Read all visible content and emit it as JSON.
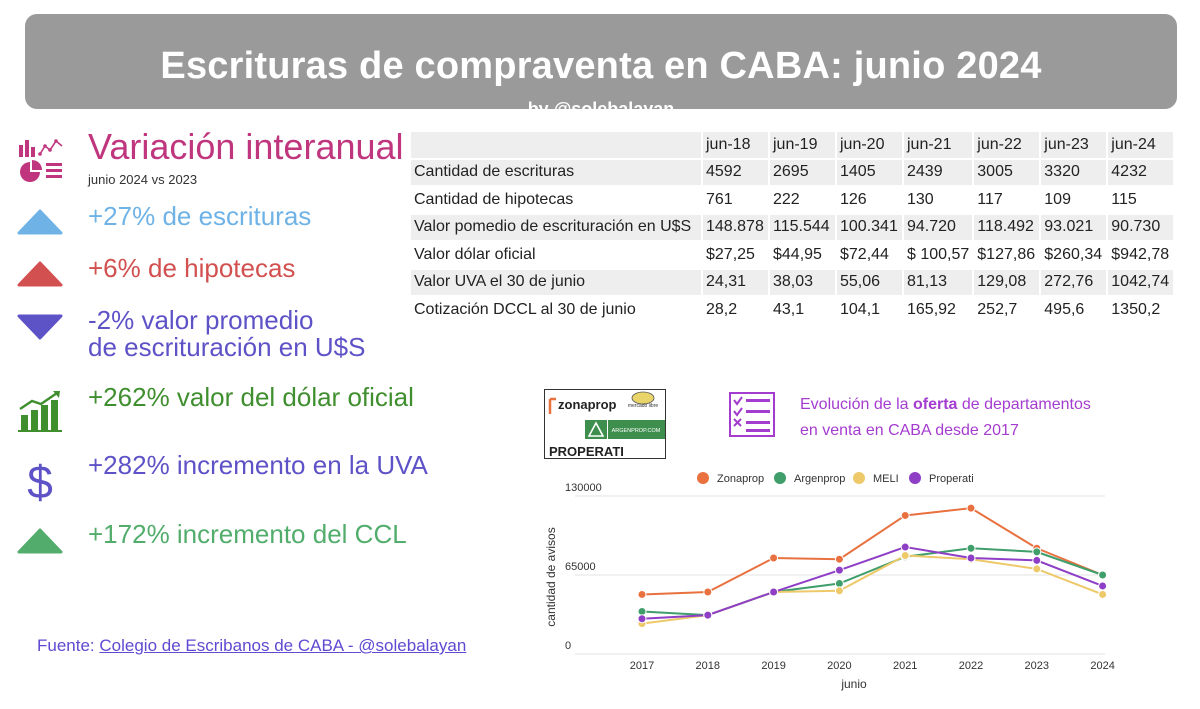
{
  "header": {
    "title": "Escrituras de compraventa en CABA:  junio 2024",
    "byline": "by @solebalayan"
  },
  "variation": {
    "title": "Variación  interanual",
    "subtitle": "junio 2024 vs 2023",
    "stats": [
      {
        "text": "+27% de escrituras",
        "color": "#6fb3e6",
        "icon": "triangle-up-icon"
      },
      {
        "text": "+6% de hipotecas",
        "color": "#d2504f",
        "icon": "triangle-up-icon"
      },
      {
        "text": "-2% valor promedio",
        "text2": "de escrituración en U$S",
        "color": "#5e52c7",
        "icon": "triangle-down-icon"
      },
      {
        "text": "+262% valor del dólar oficial",
        "color": "#3f8f2f",
        "icon": "growth-chart-icon"
      },
      {
        "text": "+282% incremento en la UVA",
        "color": "#5e52c7",
        "icon": "dollar-icon"
      },
      {
        "text": "+172% incremento del CCL",
        "color": "#52ad6c",
        "icon": "triangle-up-icon"
      }
    ]
  },
  "table": {
    "columns": [
      "jun-18",
      "jun-19",
      "jun-20",
      "jun-21",
      "jun-22",
      "jun-23",
      "jun-24"
    ],
    "rows": [
      {
        "label": "Cantidad de escrituras",
        "values": [
          "4592",
          "2695",
          "1405",
          "2439",
          "3005",
          "3320",
          "4232"
        ]
      },
      {
        "label": "Cantidad de hipotecas",
        "values": [
          "761",
          "222",
          "126",
          "130",
          "117",
          "109",
          "115"
        ]
      },
      {
        "label": "Valor pomedio de escrituración en U$S",
        "values": [
          "148.878",
          "115.544",
          "100.341",
          "94.720",
          "118.492",
          "93.021",
          "90.730"
        ]
      },
      {
        "label": "Valor dólar oficial",
        "values": [
          "$27,25",
          "$44,95",
          "$72,44",
          "$ 100,57",
          "$127,86",
          "$260,34",
          "$942,78"
        ]
      },
      {
        "label": "Valor UVA el 30 de junio",
        "values": [
          "24,31",
          "38,03",
          "55,06",
          "81,13",
          "129,08",
          "272,76",
          "1042,74"
        ]
      },
      {
        "label": "Cotización DCCL al 30 de junio",
        "values": [
          "28,2",
          "43,1",
          "104,1",
          "165,92",
          "252,7",
          "495,6",
          "1350,2"
        ]
      }
    ]
  },
  "source": {
    "prefix": "Fuente: ",
    "link": "Colegio de  Escribanos de CABA  -  @solebalayan"
  },
  "logos": {
    "zonaprop": "zonaprop",
    "mercadolibre": "mercado libre",
    "argenprop": "ARGENPROP.COM",
    "properati": "PROPERATI"
  },
  "offer": {
    "line1_a": "Evolución de la ",
    "line1_b": "oferta",
    "line1_c": " de departamentos",
    "line2": "en venta en CABA desde 2017"
  },
  "chart_data": {
    "type": "line",
    "xlabel": "junio",
    "ylabel": "cantidad de avisos",
    "x": [
      "2017",
      "2018",
      "2019",
      "2020",
      "2021",
      "2022",
      "2023",
      "2024"
    ],
    "ylim": [
      0,
      130000
    ],
    "yticks": [
      "0",
      "65000",
      "130000"
    ],
    "legend_position": "top",
    "series": [
      {
        "name": "Zonaprop",
        "color": "#e8713f",
        "values": [
          49000,
          51000,
          79000,
          78000,
          114000,
          120000,
          87000,
          65000
        ]
      },
      {
        "name": "Argenprop",
        "color": "#3f9e6a",
        "values": [
          35000,
          32000,
          51000,
          58000,
          80000,
          87000,
          84000,
          65000
        ]
      },
      {
        "name": "MELI",
        "color": "#eec96a",
        "values": [
          25000,
          32000,
          51000,
          52000,
          81000,
          78000,
          70000,
          49000
        ]
      },
      {
        "name": "Properati",
        "color": "#8e3fc6",
        "values": [
          29000,
          32000,
          51000,
          69000,
          88000,
          79000,
          77000,
          56000
        ]
      }
    ]
  }
}
